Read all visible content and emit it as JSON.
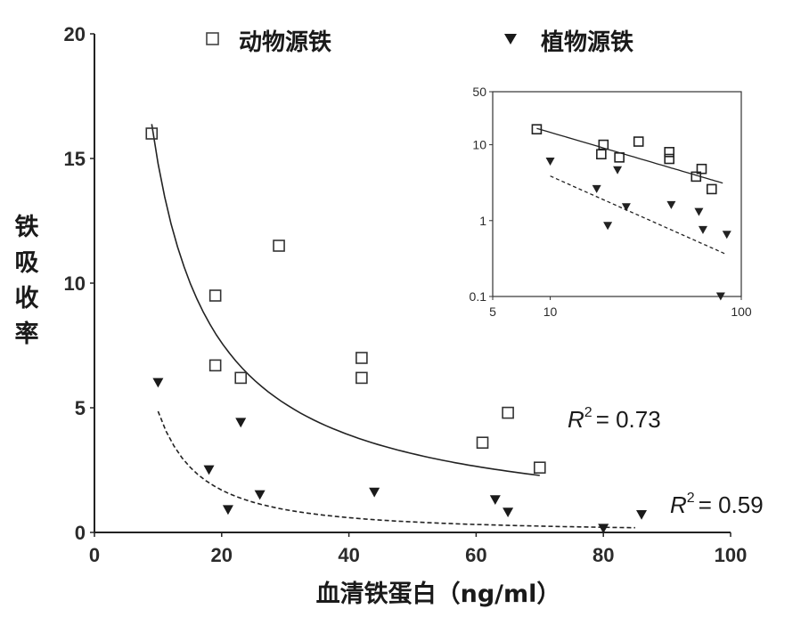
{
  "chart_data": {
    "type": "scatter",
    "xlabel": "血清铁蛋白（ng/ml）",
    "ylabel": "铁吸收率",
    "xlim": [
      0,
      100
    ],
    "ylim": [
      0,
      20
    ],
    "xticks": [
      "0",
      "20",
      "40",
      "60",
      "80",
      "100"
    ],
    "yticks": [
      "0",
      "5",
      "10",
      "15",
      "20"
    ],
    "legend": [
      {
        "label": "动物源铁",
        "marker": "open-square"
      },
      {
        "label": "植物源铁",
        "marker": "filled-triangle-down"
      }
    ],
    "series": [
      {
        "name": "动物源铁",
        "marker": "open-square",
        "color": "#333333",
        "points": [
          [
            9,
            16
          ],
          [
            19,
            9.5
          ],
          [
            19,
            6.7
          ],
          [
            23,
            6.2
          ],
          [
            29,
            11.5
          ],
          [
            42,
            7
          ],
          [
            42,
            6.2
          ],
          [
            61,
            3.6
          ],
          [
            65,
            4.8
          ],
          [
            70,
            2.6
          ]
        ],
        "fit": {
          "model": "power",
          "a": 135,
          "b": -0.96,
          "x_range": [
            9,
            70
          ],
          "style": "solid"
        },
        "r_squared_label": "= 0.73"
      },
      {
        "name": "植物源铁",
        "marker": "filled-triangle-down",
        "color": "#1a1a1a",
        "points": [
          [
            10,
            6
          ],
          [
            18,
            2.5
          ],
          [
            21,
            0.9
          ],
          [
            23,
            4.4
          ],
          [
            26,
            1.5
          ],
          [
            44,
            1.6
          ],
          [
            63,
            1.3
          ],
          [
            65,
            0.8
          ],
          [
            80,
            0.15
          ],
          [
            86,
            0.7
          ]
        ],
        "fit": {
          "model": "power",
          "a": 161,
          "b": -1.52,
          "x_range": [
            10,
            85
          ],
          "style": "dashed"
        },
        "r_squared_label": "= 0.59"
      }
    ],
    "inset": {
      "type": "scatter",
      "xscale": "log",
      "yscale": "log",
      "xlim": [
        5,
        100
      ],
      "ylim": [
        0.1,
        50
      ],
      "xticks": [
        "5",
        "10",
        "100"
      ],
      "yticks": [
        "0.1",
        "1",
        "10",
        "50"
      ],
      "series": [
        {
          "name": "动物源铁",
          "marker": "open-square",
          "points": [
            [
              8.5,
              16
            ],
            [
              19,
              10
            ],
            [
              18.5,
              7.5
            ],
            [
              23,
              6.8
            ],
            [
              29,
              11
            ],
            [
              42,
              8
            ],
            [
              42,
              6.5
            ],
            [
              58,
              3.8
            ],
            [
              62,
              4.8
            ],
            [
              70,
              2.6
            ]
          ],
          "fit": {
            "model": "power",
            "a": 80,
            "b": -0.74,
            "x_range": [
              8.5,
              80
            ],
            "style": "solid"
          }
        },
        {
          "name": "植物源铁",
          "marker": "filled-triangle-down",
          "points": [
            [
              10,
              6
            ],
            [
              17.5,
              2.6
            ],
            [
              20,
              0.85
            ],
            [
              22.5,
              4.6
            ],
            [
              25,
              1.5
            ],
            [
              43,
              1.6
            ],
            [
              60,
              1.3
            ],
            [
              63,
              0.75
            ],
            [
              78,
              0.1
            ],
            [
              84,
              0.65
            ]
          ],
          "fit": {
            "model": "power",
            "a": 51,
            "b": -1.12,
            "x_range": [
              10,
              82
            ],
            "style": "dashed"
          }
        }
      ]
    }
  }
}
